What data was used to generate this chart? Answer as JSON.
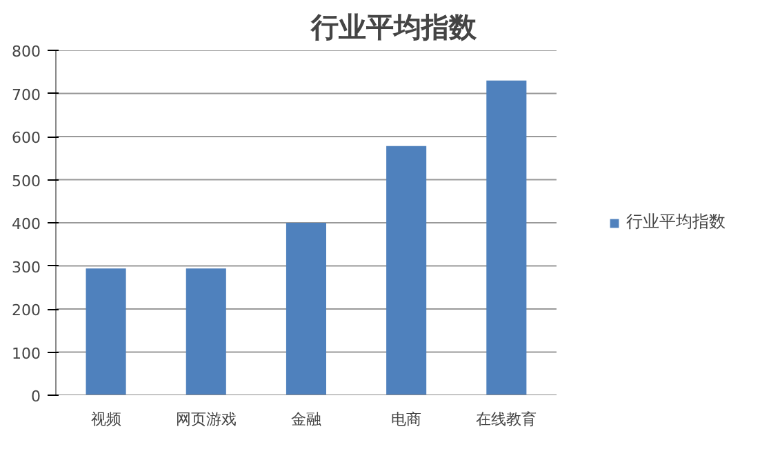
{
  "chart_data": {
    "type": "bar",
    "title": "行业平均指数",
    "categories": [
      "视频",
      "网页游戏",
      "金融",
      "电商",
      "在线教育"
    ],
    "series": [
      {
        "name": "行业平均指数",
        "color": "#4f81bd",
        "values": [
          294,
          294,
          400,
          578,
          730
        ]
      }
    ],
    "ylim": [
      0,
      800
    ],
    "yticks": [
      0,
      100,
      200,
      300,
      400,
      500,
      600,
      700,
      800
    ],
    "grid": "y",
    "legend": "right"
  }
}
